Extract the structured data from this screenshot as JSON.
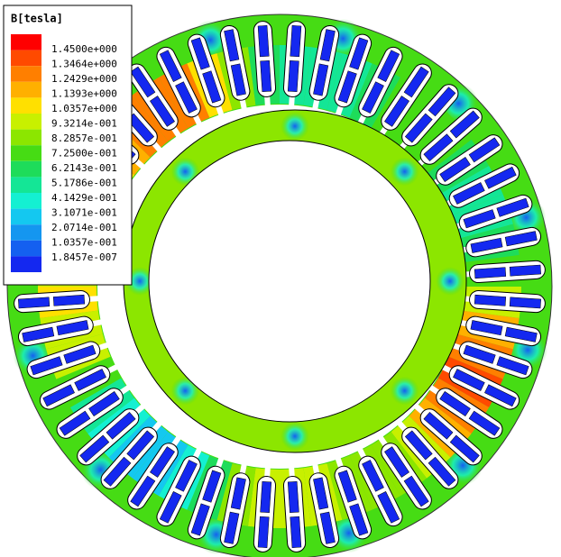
{
  "legend": {
    "title": "B[tesla]",
    "labels": [
      "1.4500e+000",
      "1.3464e+000",
      "1.2429e+000",
      "1.1393e+000",
      "1.0357e+000",
      "9.3214e-001",
      "8.2857e-001",
      "7.2500e-001",
      "6.2143e-001",
      "5.1786e-001",
      "4.1429e-001",
      "3.1071e-001",
      "2.0714e-001",
      "1.0357e-001",
      "1.8457e-007"
    ],
    "colors": [
      "#ff0000",
      "#ff4a00",
      "#ff7f00",
      "#ffb000",
      "#ffe000",
      "#c8f000",
      "#8ce600",
      "#46dc14",
      "#1edc5a",
      "#14e696",
      "#14f0d2",
      "#14c8f0",
      "#1496f0",
      "#1460f0",
      "#1428f0"
    ]
  }
}
